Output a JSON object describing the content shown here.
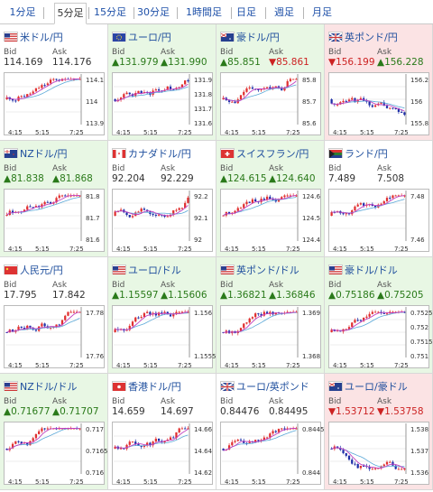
{
  "tabs": [
    {
      "label": "1分足",
      "active": false
    },
    {
      "label": "5分足",
      "active": true
    },
    {
      "label": "15分足",
      "active": false
    },
    {
      "label": "30分足",
      "active": false
    },
    {
      "label": "1時間足",
      "active": false
    },
    {
      "label": "日足",
      "active": false
    },
    {
      "label": "週足",
      "active": false
    },
    {
      "label": "月足",
      "active": false
    }
  ],
  "labels": {
    "bid": "Bid",
    "ask": "Ask"
  },
  "colors": {
    "up_bg": "#e8f7e4",
    "down_bg": "#fbe3e4",
    "up_text": "#2a7a1a",
    "down_text": "#cc2222",
    "candle_up": "#e03030",
    "candle_down": "#1f2fa8",
    "ma": "#c040c0",
    "ma_long": "#5aa8d8"
  },
  "pairs": [
    {
      "title": "米ドル/円",
      "flag": "us-flag-icon",
      "trend": "flat",
      "bid": "114.169",
      "ask": "114.176",
      "bid_dir": "flat",
      "ask_dir": "flat",
      "yticks": [
        "114.1",
        "114",
        "113.9"
      ],
      "xticks": [
        "4:15",
        "5:15",
        "7:25"
      ]
    },
    {
      "title": "ユーロ/円",
      "flag": "eu-flag-icon",
      "trend": "up",
      "bid": "▲131.979",
      "ask": "▲131.990",
      "bid_dir": "up",
      "ask_dir": "up",
      "yticks": [
        "131.9",
        "131.8",
        "131.7",
        "131.6"
      ],
      "xticks": [
        "4:15",
        "5:15",
        "7:25"
      ]
    },
    {
      "title": "豪ドル/円",
      "flag": "au-flag-icon",
      "trend": "up",
      "bid": "▲85.851",
      "ask": "▼85.861",
      "bid_dir": "up",
      "ask_dir": "down",
      "yticks": [
        "85.8",
        "85.7",
        "85.6"
      ],
      "xticks": [
        "4:15",
        "5:15",
        "7:25"
      ]
    },
    {
      "title": "英ポンド/円",
      "flag": "gb-flag-icon",
      "trend": "down",
      "bid": "▼156.199",
      "ask": "▲156.228",
      "bid_dir": "down",
      "ask_dir": "up",
      "yticks": [
        "156.2",
        "156",
        "155.8"
      ],
      "xticks": [
        "4:15",
        "5:15",
        "7:25"
      ]
    },
    {
      "title": "NZドル/円",
      "flag": "nz-flag-icon",
      "trend": "up",
      "bid": "▲81.838",
      "ask": "▲81.868",
      "bid_dir": "up",
      "ask_dir": "up",
      "yticks": [
        "81.8",
        "81.7",
        "81.6"
      ],
      "xticks": [
        "4:15",
        "5:15",
        "7:25"
      ]
    },
    {
      "title": "カナダドル/円",
      "flag": "ca-flag-icon",
      "trend": "flat",
      "bid": "92.204",
      "ask": "92.229",
      "bid_dir": "flat",
      "ask_dir": "flat",
      "yticks": [
        "92.2",
        "92.1",
        "92"
      ],
      "xticks": [
        "4:15",
        "5:15",
        "7:25"
      ]
    },
    {
      "title": "スイスフラン/円",
      "flag": "ch-flag-icon",
      "trend": "up",
      "bid": "▲124.615",
      "ask": "▲124.640",
      "bid_dir": "up",
      "ask_dir": "up",
      "yticks": [
        "124.6",
        "124.5",
        "124.4"
      ],
      "xticks": [
        "4:15",
        "5:15",
        "7:25"
      ]
    },
    {
      "title": "ランド/円",
      "flag": "za-flag-icon",
      "trend": "flat",
      "bid": "7.489",
      "ask": "7.508",
      "bid_dir": "flat",
      "ask_dir": "flat",
      "yticks": [
        "7.48",
        "7.46"
      ],
      "xticks": [
        "4:15",
        "5:15",
        "7:25"
      ]
    },
    {
      "title": "人民元/円",
      "flag": "cn-flag-icon",
      "trend": "flat",
      "bid": "17.795",
      "ask": "17.842",
      "bid_dir": "flat",
      "ask_dir": "flat",
      "yticks": [
        "17.78",
        "17.76"
      ],
      "xticks": [
        "4:15",
        "5:15",
        "7:25"
      ]
    },
    {
      "title": "ユーロ/ドル",
      "flag": "us-flag-icon",
      "trend": "up",
      "bid": "▲1.15597",
      "ask": "▲1.15606",
      "bid_dir": "up",
      "ask_dir": "up",
      "yticks": [
        "1.156",
        "1.1555"
      ],
      "xticks": [
        "4:15",
        "5:15",
        "7:25"
      ]
    },
    {
      "title": "英ポンド/ドル",
      "flag": "us-flag-icon",
      "trend": "up",
      "bid": "▲1.36821",
      "ask": "▲1.36846",
      "bid_dir": "up",
      "ask_dir": "up",
      "yticks": [
        "1.369",
        "1.368"
      ],
      "xticks": [
        "4:15",
        "5:15",
        "7:25"
      ]
    },
    {
      "title": "豪ドル/ドル",
      "flag": "us-flag-icon",
      "trend": "up",
      "bid": "▲0.75186",
      "ask": "▲0.75205",
      "bid_dir": "up",
      "ask_dir": "up",
      "yticks": [
        "0.7525",
        "0.752",
        "0.7515",
        "0.751"
      ],
      "xticks": [
        "4:15",
        "5:15",
        "7:25"
      ]
    },
    {
      "title": "NZドル/ドル",
      "flag": "us-flag-icon",
      "trend": "up",
      "bid": "▲0.71677",
      "ask": "▲0.71707",
      "bid_dir": "up",
      "ask_dir": "up",
      "yticks": [
        "0.717",
        "0.7165",
        "0.716"
      ],
      "xticks": [
        "4:15",
        "5:15",
        "7:25"
      ]
    },
    {
      "title": "香港ドル/円",
      "flag": "hk-flag-icon",
      "trend": "flat",
      "bid": "14.659",
      "ask": "14.697",
      "bid_dir": "flat",
      "ask_dir": "flat",
      "yticks": [
        "14.66",
        "14.64",
        "14.62"
      ],
      "xticks": [
        "4:15",
        "5:15",
        "7:25"
      ]
    },
    {
      "title": "ユーロ/英ポンド",
      "flag": "gb-flag-icon",
      "trend": "flat",
      "bid": "0.84476",
      "ask": "0.84495",
      "bid_dir": "flat",
      "ask_dir": "flat",
      "yticks": [
        "0.8445",
        "0.844"
      ],
      "xticks": [
        "4:15",
        "5:15",
        "7:25"
      ]
    },
    {
      "title": "ユーロ/豪ドル",
      "flag": "au-flag-icon",
      "trend": "down",
      "bid": "▼1.53712",
      "ask": "▼1.53758",
      "bid_dir": "down",
      "ask_dir": "down",
      "yticks": [
        "1.538",
        "1.537",
        "1.536"
      ],
      "xticks": [
        "4:15",
        "5:15",
        "7:25"
      ]
    }
  ]
}
